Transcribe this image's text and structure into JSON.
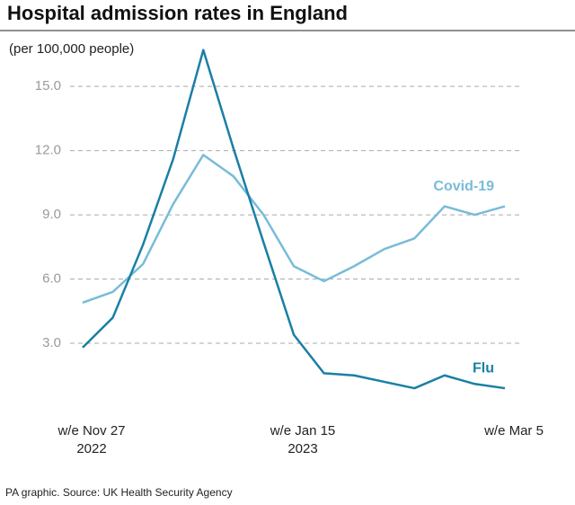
{
  "chart_data": {
    "type": "line",
    "title": "Hospital admission rates in England",
    "subtitle": "(per 100,000 people)",
    "source": "PA graphic. Source: UK Health Security Agency",
    "categories": [
      "w/e Nov 27",
      null,
      null,
      null,
      null,
      null,
      null,
      "w/e Jan 15",
      null,
      null,
      null,
      null,
      null,
      null,
      "w/e Mar 5"
    ],
    "category_years": [
      "2022",
      null,
      null,
      null,
      null,
      null,
      null,
      "2023",
      null,
      null,
      null,
      null,
      null,
      null,
      null
    ],
    "series": [
      {
        "name": "Covid-19",
        "color": "#78bcd8",
        "values": [
          4.9,
          5.4,
          6.7,
          9.5,
          11.8,
          10.8,
          9.0,
          6.6,
          5.9,
          6.6,
          7.4,
          7.9,
          9.4,
          9.0,
          9.4
        ]
      },
      {
        "name": "Flu",
        "color": "#1a7fa5",
        "values": [
          2.8,
          4.2,
          7.6,
          11.6,
          16.7,
          12.1,
          7.7,
          3.4,
          1.6,
          1.5,
          1.2,
          0.9,
          1.5,
          1.1,
          0.9
        ]
      }
    ],
    "ylim": [
      0,
      17
    ],
    "yticks": [
      {
        "value": 3,
        "label": "3.0"
      },
      {
        "value": 6,
        "label": "6.0"
      },
      {
        "value": 9,
        "label": "9.0"
      },
      {
        "value": 12,
        "label": "12.0"
      },
      {
        "value": 15,
        "label": "15.0"
      }
    ],
    "grid": true
  }
}
